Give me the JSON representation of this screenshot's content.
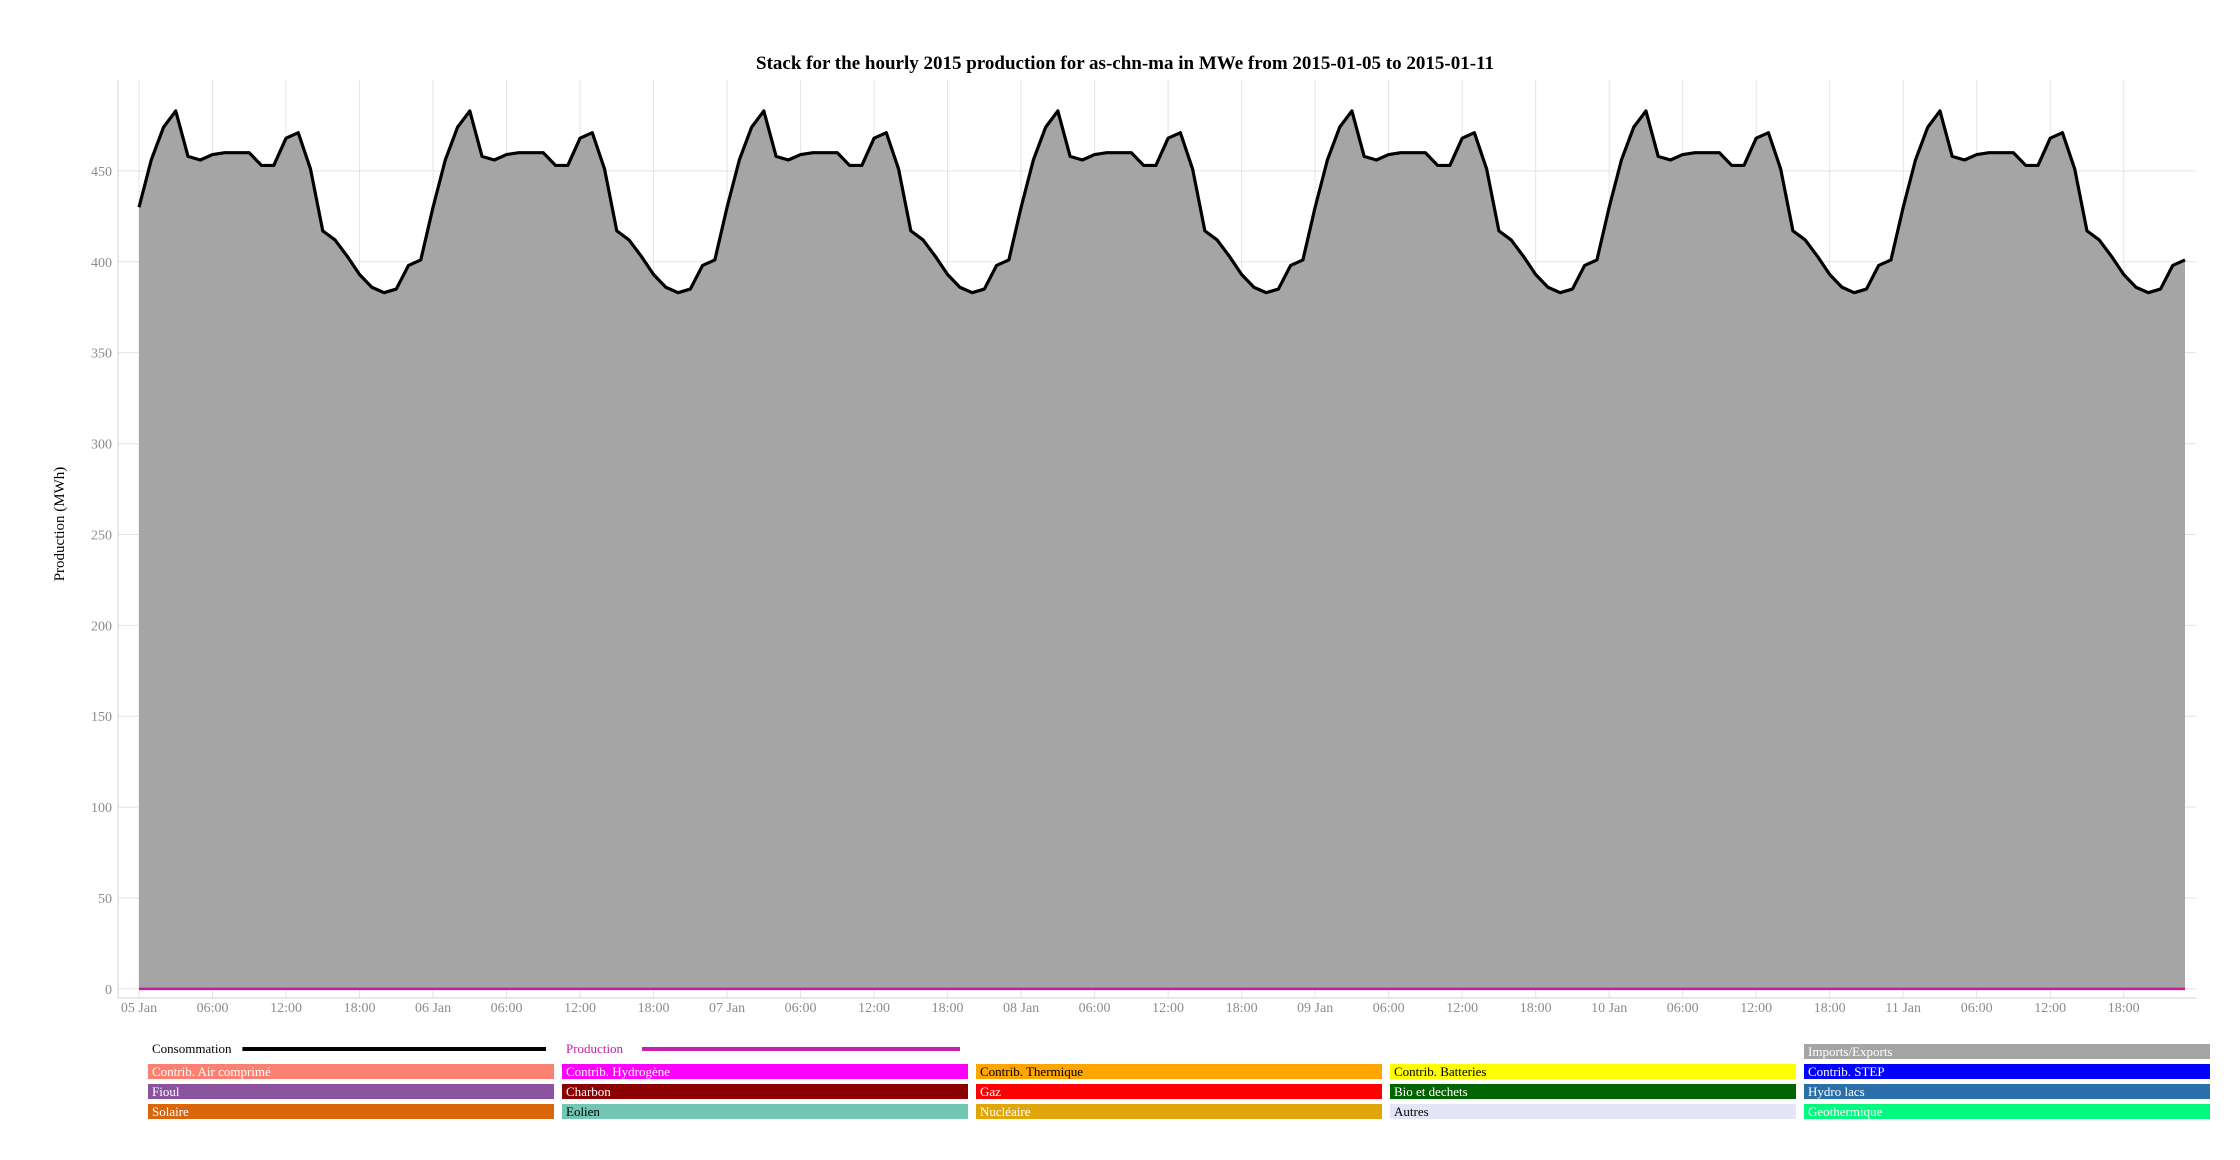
{
  "chart_data": {
    "type": "area",
    "title": "Stack for the hourly 2015 production for as-chn-ma in MWe from 2015-01-05 to 2015-01-11",
    "xlabel": "",
    "ylabel": "Production (MWh)",
    "ylim": [
      -5,
      500
    ],
    "y_ticks": [
      0,
      50,
      100,
      150,
      200,
      250,
      300,
      350,
      400,
      450
    ],
    "x_ticks": [
      {
        "hour": 0,
        "label": "05 Jan"
      },
      {
        "hour": 6,
        "label": "06:00"
      },
      {
        "hour": 12,
        "label": "12:00"
      },
      {
        "hour": 18,
        "label": "18:00"
      },
      {
        "hour": 24,
        "label": "06 Jan"
      },
      {
        "hour": 30,
        "label": "06:00"
      },
      {
        "hour": 36,
        "label": "12:00"
      },
      {
        "hour": 42,
        "label": "18:00"
      },
      {
        "hour": 48,
        "label": "07 Jan"
      },
      {
        "hour": 54,
        "label": "06:00"
      },
      {
        "hour": 60,
        "label": "12:00"
      },
      {
        "hour": 66,
        "label": "18:00"
      },
      {
        "hour": 72,
        "label": "08 Jan"
      },
      {
        "hour": 78,
        "label": "06:00"
      },
      {
        "hour": 84,
        "label": "12:00"
      },
      {
        "hour": 90,
        "label": "18:00"
      },
      {
        "hour": 96,
        "label": "09 Jan"
      },
      {
        "hour": 102,
        "label": "06:00"
      },
      {
        "hour": 108,
        "label": "12:00"
      },
      {
        "hour": 114,
        "label": "18:00"
      },
      {
        "hour": 120,
        "label": "10 Jan"
      },
      {
        "hour": 126,
        "label": "06:00"
      },
      {
        "hour": 132,
        "label": "12:00"
      },
      {
        "hour": 138,
        "label": "18:00"
      },
      {
        "hour": 144,
        "label": "11 Jan"
      },
      {
        "hour": 150,
        "label": "06:00"
      },
      {
        "hour": 156,
        "label": "12:00"
      },
      {
        "hour": 162,
        "label": "18:00"
      }
    ],
    "x_start": "2015-01-05 00:00",
    "x_step": "1 hour",
    "daily_profile": [
      430,
      456,
      474,
      483,
      458,
      456,
      459,
      460,
      460,
      460,
      453,
      453,
      468,
      471,
      451,
      417,
      412,
      403,
      393,
      386,
      383,
      385,
      398,
      401
    ],
    "series": [
      {
        "name": "Imports/Exports",
        "kind": "area",
        "color": "#a5a5a5",
        "days": [
          [
            430,
            456,
            474,
            483,
            458,
            456,
            459,
            460,
            460,
            460,
            453,
            453,
            468,
            471,
            451,
            417,
            412,
            403,
            393,
            386,
            383,
            385,
            398,
            401
          ],
          [
            430,
            456,
            474,
            483,
            458,
            456,
            459,
            460,
            460,
            460,
            453,
            453,
            468,
            471,
            451,
            417,
            412,
            403,
            393,
            386,
            383,
            385,
            398,
            401
          ],
          [
            430,
            456,
            474,
            483,
            458,
            456,
            459,
            460,
            460,
            460,
            453,
            453,
            468,
            471,
            451,
            417,
            412,
            403,
            393,
            386,
            383,
            385,
            398,
            401
          ],
          [
            430,
            456,
            474,
            483,
            458,
            456,
            459,
            460,
            460,
            460,
            453,
            453,
            468,
            471,
            451,
            417,
            412,
            403,
            393,
            386,
            383,
            385,
            398,
            401
          ],
          [
            430,
            456,
            474,
            483,
            458,
            456,
            459,
            460,
            460,
            460,
            453,
            453,
            468,
            471,
            451,
            417,
            412,
            403,
            393,
            386,
            383,
            385,
            398,
            401
          ],
          [
            430,
            456,
            474,
            483,
            458,
            456,
            459,
            460,
            460,
            460,
            453,
            453,
            468,
            471,
            451,
            417,
            412,
            403,
            393,
            386,
            383,
            385,
            398,
            401
          ],
          [
            430,
            456,
            474,
            483,
            458,
            456,
            459,
            460,
            460,
            460,
            453,
            453,
            468,
            471,
            451,
            417,
            412,
            403,
            393,
            386,
            383,
            385,
            398,
            401
          ]
        ]
      },
      {
        "name": "Consommation",
        "kind": "line",
        "color": "#000000",
        "days": [
          [
            430,
            456,
            474,
            483,
            458,
            456,
            459,
            460,
            460,
            460,
            453,
            453,
            468,
            471,
            451,
            417,
            412,
            403,
            393,
            386,
            383,
            385,
            398,
            401
          ],
          [
            430,
            456,
            474,
            483,
            458,
            456,
            459,
            460,
            460,
            460,
            453,
            453,
            468,
            471,
            451,
            417,
            412,
            403,
            393,
            386,
            383,
            385,
            398,
            401
          ],
          [
            430,
            456,
            474,
            483,
            458,
            456,
            459,
            460,
            460,
            460,
            453,
            453,
            468,
            471,
            451,
            417,
            412,
            403,
            393,
            386,
            383,
            385,
            398,
            401
          ],
          [
            430,
            456,
            474,
            483,
            458,
            456,
            459,
            460,
            460,
            460,
            453,
            453,
            468,
            471,
            451,
            417,
            412,
            403,
            393,
            386,
            383,
            385,
            398,
            401
          ],
          [
            430,
            456,
            474,
            483,
            458,
            456,
            459,
            460,
            460,
            460,
            453,
            453,
            468,
            471,
            451,
            417,
            412,
            403,
            393,
            386,
            383,
            385,
            398,
            401
          ],
          [
            430,
            456,
            474,
            483,
            458,
            456,
            459,
            460,
            460,
            460,
            453,
            453,
            468,
            471,
            451,
            417,
            412,
            403,
            393,
            386,
            383,
            385,
            398,
            401
          ],
          [
            430,
            456,
            474,
            483,
            458,
            456,
            459,
            460,
            460,
            460,
            453,
            453,
            468,
            471,
            451,
            417,
            412,
            403,
            393,
            386,
            383,
            385,
            398,
            401
          ]
        ]
      },
      {
        "name": "Production",
        "kind": "line",
        "color": "#c71ca0",
        "values": [
          0
        ]
      }
    ],
    "grid": true,
    "legend": {
      "position": "bottom",
      "line_entries": [
        {
          "name": "Consommation",
          "color": "#000000",
          "text_color": "#000000",
          "column": 0
        },
        {
          "name": "Production",
          "color": "#cc1fae",
          "text_color": "#c71ca0",
          "column": 1
        }
      ],
      "box_entries": [
        {
          "name": "Imports/Exports",
          "color": "#a5a5a5",
          "text_color": "#ffffff",
          "row": 0,
          "column": 4
        },
        {
          "name": "Contrib. Air comprimé",
          "color": "#fa8071",
          "text_color": "#ffffff",
          "row": 1,
          "column": 0
        },
        {
          "name": "Contrib. Hydrogène",
          "color": "#ff00ff",
          "text_color": "#ffffff",
          "row": 1,
          "column": 1
        },
        {
          "name": "Contrib. Thermique",
          "color": "#ffa500",
          "text_color": "#000000",
          "row": 1,
          "column": 2
        },
        {
          "name": "Contrib. Batteries",
          "color": "#ffff00",
          "text_color": "#000000",
          "row": 1,
          "column": 3
        },
        {
          "name": "Contrib. STEP",
          "color": "#0000ff",
          "text_color": "#ffffff",
          "row": 1,
          "column": 4
        },
        {
          "name": "Fioul",
          "color": "#8b52a0",
          "text_color": "#ffffff",
          "row": 2,
          "column": 0
        },
        {
          "name": "Charbon",
          "color": "#8b0000",
          "text_color": "#ffffff",
          "row": 2,
          "column": 1
        },
        {
          "name": "Gaz",
          "color": "#ff0000",
          "text_color": "#ffffff",
          "row": 2,
          "column": 2
        },
        {
          "name": "Bio et dechets",
          "color": "#006400",
          "text_color": "#ffffff",
          "row": 2,
          "column": 3
        },
        {
          "name": "Hydro lacs",
          "color": "#2a6faa",
          "text_color": "#ffffff",
          "row": 2,
          "column": 4
        },
        {
          "name": "Solaire",
          "color": "#d9660b",
          "text_color": "#ffffff",
          "row": 3,
          "column": 0
        },
        {
          "name": "Eolien",
          "color": "#72c7b4",
          "text_color": "#000000",
          "row": 3,
          "column": 1
        },
        {
          "name": "Nucléaire",
          "color": "#e0a60a",
          "text_color": "#ffffff",
          "row": 3,
          "column": 2
        },
        {
          "name": "Autres",
          "color": "#e5e5f7",
          "text_color": "#000000",
          "row": 3,
          "column": 3
        },
        {
          "name": "Geothermique",
          "color": "#00fa80",
          "text_color": "#ffffff",
          "row": 3,
          "column": 4
        }
      ]
    }
  }
}
